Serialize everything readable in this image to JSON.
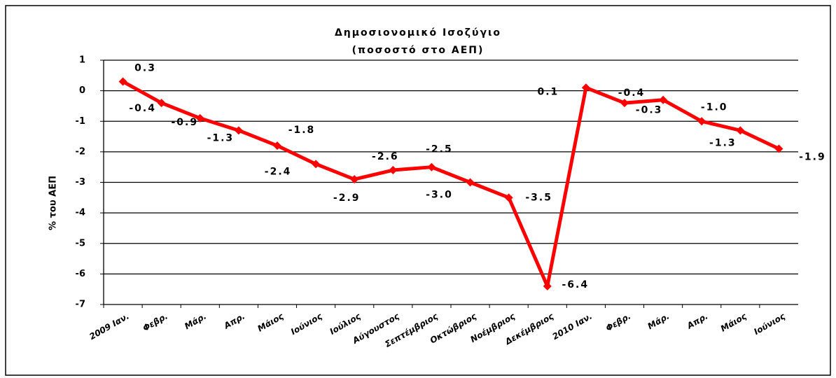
{
  "chart_data": {
    "type": "line",
    "title": "Δημοσιονομικό Ισοζύγιο",
    "subtitle": "(ποσοστό στο ΑΕΠ)",
    "y_label": "% του ΑΕΠ",
    "categories": [
      "2009 Ιαν.",
      "Φεβρ.",
      "Μάρ.",
      "Απρ.",
      "Μάιος",
      "Ιούνιος",
      "Ιούλιος",
      "Αύγουστος",
      "Σεπτέμβριος",
      "Οκτώβριος",
      "Νοέμβριος",
      "Δεκέμβριος",
      "2010 Ιαν.",
      "Φεβρ.",
      "Μάρ.",
      "Απρ.",
      "Μάιος",
      "Ιούνιος"
    ],
    "series": [
      {
        "name": "Δημοσιονομικό Ισοζύγιο",
        "color": "#ff0000",
        "values": [
          0.3,
          -0.4,
          -0.9,
          -1.3,
          -1.8,
          -2.4,
          -2.9,
          -2.6,
          -2.5,
          -3.0,
          -3.5,
          -6.4,
          0.1,
          -0.4,
          -0.3,
          -1.0,
          -1.3,
          -1.9
        ],
        "value_labels": [
          "0.3",
          "-0.4",
          "-0.9",
          "-1.3",
          "-1.8",
          "-2.4",
          "-2.9",
          "-2.6",
          "-2.5",
          "-3.0",
          "-3.5",
          "-6.4",
          "0.1",
          "-0.4",
          "-0.3",
          "-1.0",
          "-1.3",
          "-1.9"
        ]
      }
    ],
    "ylim": [
      -7,
      1
    ],
    "yticks": [
      -7,
      -6,
      -5,
      -4,
      -3,
      -2,
      -1,
      0,
      1
    ],
    "grid": true
  }
}
